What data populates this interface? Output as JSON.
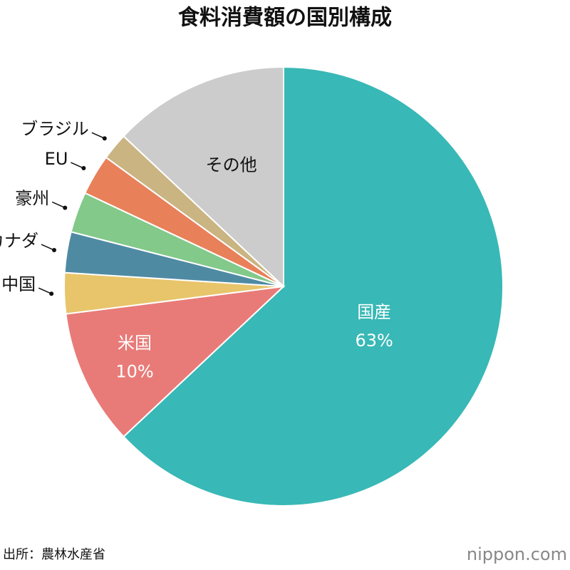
{
  "chart_data": {
    "type": "pie",
    "title": "食料消費額の国別構成",
    "categories": [
      "国産",
      "米国",
      "中国",
      "カナダ",
      "豪州",
      "EU",
      "ブラジル",
      "その他"
    ],
    "values": [
      63,
      10,
      3,
      3,
      3,
      3,
      2,
      13
    ],
    "value_labels": [
      "63%",
      "10%",
      null,
      null,
      null,
      null,
      null,
      null
    ],
    "colors": [
      "#38b8b6",
      "#e87b78",
      "#e8c56a",
      "#4f8aa3",
      "#82c98a",
      "#e8805a",
      "#c9b482",
      "#cccccc"
    ]
  },
  "source": "出所：農林水産省",
  "logo": "nippon.com"
}
